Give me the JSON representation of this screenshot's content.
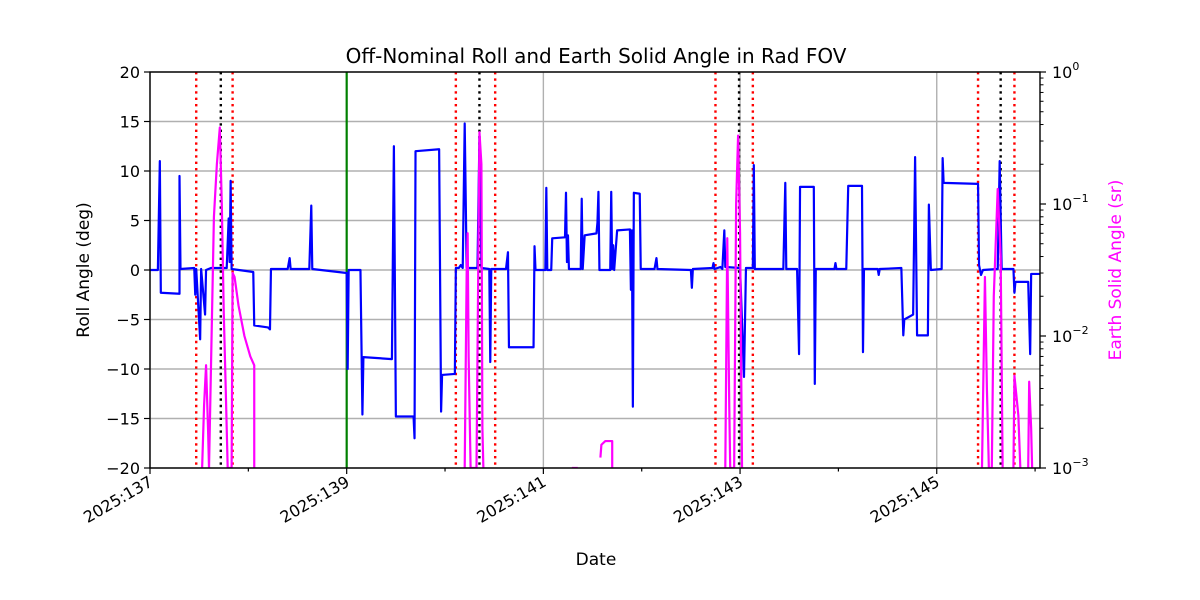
{
  "chart_data": {
    "type": "line",
    "title": "Off-Nominal Roll and Earth Solid Angle in Rad FOV",
    "xlabel": "Date",
    "ylabel": "Roll Angle (deg)",
    "ylabel_right": "Earth Solid Angle (sr)",
    "xlim": [
      137,
      146.05
    ],
    "ylim": [
      -20,
      20
    ],
    "ylim_right": [
      0.001,
      1
    ],
    "y_right_scale": "log",
    "grid": true,
    "x_ticks": [
      {
        "value": 137,
        "label": "2025:137"
      },
      {
        "value": 139,
        "label": "2025:139"
      },
      {
        "value": 141,
        "label": "2025:141"
      },
      {
        "value": 143,
        "label": "2025:143"
      },
      {
        "value": 145,
        "label": "2025:145"
      }
    ],
    "y_ticks": [
      {
        "value": 20,
        "label": "20"
      },
      {
        "value": 15,
        "label": "15"
      },
      {
        "value": 10,
        "label": "10"
      },
      {
        "value": 5,
        "label": "5"
      },
      {
        "value": 0,
        "label": "0"
      },
      {
        "value": -5,
        "label": "−5"
      },
      {
        "value": -10,
        "label": "−10"
      },
      {
        "value": -15,
        "label": "−15"
      },
      {
        "value": -20,
        "label": "−20"
      }
    ],
    "y_right_ticks": [
      {
        "value": 1,
        "base": "10",
        "exp": "0"
      },
      {
        "value": 0.1,
        "base": "10",
        "exp": "−1"
      },
      {
        "value": 0.01,
        "base": "10",
        "exp": "−2"
      },
      {
        "value": 0.001,
        "base": "10",
        "exp": "−3"
      }
    ],
    "colors": {
      "roll": "#0000ff",
      "solid_angle": "#ff00ff",
      "right_axis": "#ff00ff",
      "red_marker": "#ff0000",
      "black_marker": "#000000",
      "green_marker": "#008000",
      "grid": "#b0b0b0"
    },
    "vertical_markers": [
      {
        "x": 137.47,
        "color": "red",
        "style": "dotted"
      },
      {
        "x": 137.72,
        "color": "black",
        "style": "dotted"
      },
      {
        "x": 137.84,
        "color": "red",
        "style": "dotted"
      },
      {
        "x": 139.0,
        "color": "green",
        "style": "solid"
      },
      {
        "x": 140.11,
        "color": "red",
        "style": "dotted"
      },
      {
        "x": 140.35,
        "color": "black",
        "style": "dotted"
      },
      {
        "x": 140.51,
        "color": "red",
        "style": "dotted"
      },
      {
        "x": 142.75,
        "color": "red",
        "style": "dotted"
      },
      {
        "x": 142.99,
        "color": "black",
        "style": "dotted"
      },
      {
        "x": 143.13,
        "color": "red",
        "style": "dotted"
      },
      {
        "x": 145.42,
        "color": "red",
        "style": "dotted"
      },
      {
        "x": 145.65,
        "color": "black",
        "style": "dotted"
      },
      {
        "x": 145.79,
        "color": "red",
        "style": "dotted"
      }
    ],
    "series": [
      {
        "name": "Roll Angle",
        "axis": "left",
        "points": [
          [
            137.0,
            0.0
          ],
          [
            137.08,
            0.0
          ],
          [
            137.1,
            11.0
          ],
          [
            137.11,
            -2.3
          ],
          [
            137.3,
            -2.4
          ],
          [
            137.3,
            9.5
          ],
          [
            137.31,
            0.1
          ],
          [
            137.45,
            0.2
          ],
          [
            137.46,
            -2.5
          ],
          [
            137.47,
            0.1
          ],
          [
            137.51,
            -7.0
          ],
          [
            137.52,
            0.1
          ],
          [
            137.56,
            -4.5
          ],
          [
            137.57,
            0.0
          ],
          [
            137.62,
            0.2
          ],
          [
            137.78,
            0.2
          ],
          [
            137.8,
            5.2
          ],
          [
            137.81,
            0.8
          ],
          [
            137.82,
            9.0
          ],
          [
            137.83,
            0.1
          ],
          [
            138.05,
            -0.2
          ],
          [
            138.06,
            -5.6
          ],
          [
            138.2,
            -5.8
          ],
          [
            138.22,
            -6.0
          ],
          [
            138.23,
            0.1
          ],
          [
            138.4,
            0.1
          ],
          [
            138.42,
            1.2
          ],
          [
            138.43,
            0.1
          ],
          [
            138.62,
            0.1
          ],
          [
            138.64,
            6.5
          ],
          [
            138.65,
            0.1
          ],
          [
            139.0,
            -0.3
          ],
          [
            139.01,
            -10.0
          ],
          [
            139.02,
            0.0
          ],
          [
            139.14,
            0.0
          ],
          [
            139.16,
            -14.6
          ],
          [
            139.17,
            -8.8
          ],
          [
            139.46,
            -9.0
          ],
          [
            139.48,
            12.5
          ],
          [
            139.5,
            -14.8
          ],
          [
            139.68,
            -14.8
          ],
          [
            139.69,
            -17.0
          ],
          [
            139.7,
            12.0
          ],
          [
            139.94,
            12.2
          ],
          [
            139.96,
            -14.3
          ],
          [
            139.97,
            -10.6
          ],
          [
            140.1,
            -10.5
          ],
          [
            140.11,
            0.2
          ],
          [
            140.14,
            0.2
          ],
          [
            140.16,
            0.5
          ],
          [
            140.18,
            0.2
          ],
          [
            140.2,
            14.8
          ],
          [
            140.22,
            0.2
          ],
          [
            140.33,
            0.2
          ],
          [
            140.35,
            13.5
          ],
          [
            140.37,
            0.2
          ],
          [
            140.45,
            0.1
          ],
          [
            140.46,
            -9.3
          ],
          [
            140.47,
            0.1
          ],
          [
            140.62,
            0.1
          ],
          [
            140.64,
            1.8
          ],
          [
            140.65,
            -7.8
          ],
          [
            140.9,
            -7.8
          ],
          [
            140.91,
            2.4
          ],
          [
            140.92,
            0.0
          ],
          [
            141.02,
            0.0
          ],
          [
            141.03,
            8.3
          ],
          [
            141.04,
            0.0
          ],
          [
            141.08,
            0.0
          ],
          [
            141.09,
            3.2
          ],
          [
            141.22,
            3.3
          ],
          [
            141.23,
            7.8
          ],
          [
            141.24,
            0.8
          ],
          [
            141.25,
            3.5
          ],
          [
            141.26,
            0.1
          ],
          [
            141.38,
            0.1
          ],
          [
            141.39,
            7.2
          ],
          [
            141.4,
            0.1
          ],
          [
            141.42,
            3.5
          ],
          [
            141.54,
            3.7
          ],
          [
            141.55,
            4.8
          ],
          [
            141.56,
            7.9
          ],
          [
            141.57,
            0.0
          ],
          [
            141.68,
            0.0
          ],
          [
            141.69,
            7.9
          ],
          [
            141.7,
            0.1
          ],
          [
            141.71,
            2.5
          ],
          [
            141.72,
            0.0
          ],
          [
            141.75,
            4.0
          ],
          [
            141.88,
            4.1
          ],
          [
            141.89,
            -2.0
          ],
          [
            141.9,
            4.0
          ],
          [
            141.91,
            -13.8
          ],
          [
            141.92,
            7.8
          ],
          [
            141.98,
            7.7
          ],
          [
            141.99,
            0.1
          ],
          [
            142.13,
            0.1
          ],
          [
            142.15,
            1.2
          ],
          [
            142.16,
            0.1
          ],
          [
            142.5,
            0.0
          ],
          [
            142.51,
            -1.8
          ],
          [
            142.52,
            0.1
          ],
          [
            142.72,
            0.2
          ],
          [
            142.73,
            0.7
          ],
          [
            142.74,
            0.1
          ],
          [
            142.8,
            0.3
          ],
          [
            142.82,
            0.1
          ],
          [
            142.84,
            4.0
          ],
          [
            142.85,
            0.3
          ],
          [
            143.0,
            0.2
          ],
          [
            143.04,
            -10.8
          ],
          [
            143.06,
            0.2
          ],
          [
            143.13,
            0.2
          ],
          [
            143.14,
            10.6
          ],
          [
            143.15,
            0.1
          ],
          [
            143.44,
            0.1
          ],
          [
            143.46,
            8.8
          ],
          [
            143.47,
            0.1
          ],
          [
            143.58,
            0.1
          ],
          [
            143.6,
            -8.5
          ],
          [
            143.61,
            8.4
          ],
          [
            143.75,
            8.4
          ],
          [
            143.76,
            -11.5
          ],
          [
            143.77,
            0.1
          ],
          [
            143.96,
            0.1
          ],
          [
            143.97,
            0.7
          ],
          [
            143.98,
            0.1
          ],
          [
            144.08,
            0.1
          ],
          [
            144.1,
            8.5
          ],
          [
            144.24,
            8.5
          ],
          [
            144.25,
            -8.3
          ],
          [
            144.26,
            0.1
          ],
          [
            144.4,
            0.1
          ],
          [
            144.41,
            -0.5
          ],
          [
            144.42,
            0.1
          ],
          [
            144.64,
            0.2
          ],
          [
            144.66,
            -6.6
          ],
          [
            144.67,
            -5.0
          ],
          [
            144.76,
            -4.5
          ],
          [
            144.78,
            11.4
          ],
          [
            144.8,
            -6.6
          ],
          [
            144.91,
            -6.6
          ],
          [
            144.92,
            6.6
          ],
          [
            144.94,
            0.0
          ],
          [
            145.05,
            0.1
          ],
          [
            145.06,
            11.3
          ],
          [
            145.07,
            8.8
          ],
          [
            145.42,
            8.7
          ],
          [
            145.43,
            0.5
          ],
          [
            145.45,
            -0.5
          ],
          [
            145.47,
            0.0
          ],
          [
            145.62,
            0.1
          ],
          [
            145.64,
            11.0
          ],
          [
            145.66,
            0.1
          ],
          [
            145.78,
            0.1
          ],
          [
            145.79,
            -2.3
          ],
          [
            145.8,
            -1.2
          ],
          [
            145.93,
            -1.2
          ],
          [
            145.95,
            -8.5
          ],
          [
            145.96,
            -0.4
          ],
          [
            146.05,
            -0.4
          ]
        ]
      },
      {
        "name": "Earth Solid Angle",
        "axis": "right",
        "points": [
          [
            137.53,
            0.001
          ],
          [
            137.55,
            0.003
          ],
          [
            137.57,
            0.006
          ],
          [
            137.59,
            0.002
          ],
          [
            137.6,
            0.001
          ],
          [
            137.65,
            0.08
          ],
          [
            137.68,
            0.2
          ],
          [
            137.71,
            0.38
          ],
          [
            137.73,
            0.1
          ],
          [
            137.75,
            0.015
          ],
          [
            137.77,
            0.004
          ],
          [
            137.79,
            0.001
          ],
          [
            137.83,
            0.001
          ],
          [
            137.84,
            0.03
          ],
          [
            137.86,
            0.028
          ],
          [
            137.9,
            0.017
          ],
          [
            137.96,
            0.01
          ],
          [
            138.02,
            0.007
          ],
          [
            138.06,
            0.006
          ],
          [
            138.06,
            0.001
          ],
          [
            null,
            null
          ],
          [
            140.2,
            0.001
          ],
          [
            140.22,
            0.03
          ],
          [
            140.23,
            0.06
          ],
          [
            140.24,
            0.007
          ],
          [
            140.26,
            0.001
          ],
          [
            140.32,
            0.001
          ],
          [
            140.35,
            0.35
          ],
          [
            140.37,
            0.2
          ],
          [
            140.38,
            0.002
          ],
          [
            140.39,
            0.001
          ],
          [
            null,
            null
          ],
          [
            141.29,
            0.001
          ],
          [
            141.35,
            0.001
          ],
          [
            null,
            null
          ],
          [
            141.58,
            0.0012
          ],
          [
            141.59,
            0.0015
          ],
          [
            141.63,
            0.0016
          ],
          [
            141.7,
            0.0016
          ],
          [
            141.7,
            0.001
          ],
          [
            null,
            null
          ],
          [
            142.85,
            0.001
          ],
          [
            142.87,
            0.055
          ],
          [
            142.89,
            0.003
          ],
          [
            142.9,
            0.001
          ],
          [
            142.94,
            0.001
          ],
          [
            142.96,
            0.1
          ],
          [
            142.98,
            0.33
          ],
          [
            143.0,
            0.06
          ],
          [
            143.02,
            0.001
          ],
          [
            null,
            null
          ],
          [
            145.46,
            0.001
          ],
          [
            145.49,
            0.028
          ],
          [
            145.51,
            0.004
          ],
          [
            145.53,
            0.001
          ],
          [
            145.56,
            0.001
          ],
          [
            145.58,
            0.02
          ],
          [
            145.62,
            0.13
          ],
          [
            145.65,
            0.04
          ],
          [
            145.67,
            0.001
          ],
          [
            null,
            null
          ],
          [
            145.78,
            0.001
          ],
          [
            145.79,
            0.005
          ],
          [
            145.83,
            0.0025
          ],
          [
            145.85,
            0.001
          ],
          [
            null,
            null
          ],
          [
            145.93,
            0.001
          ],
          [
            145.94,
            0.0045
          ],
          [
            145.96,
            0.002
          ],
          [
            145.97,
            0.001
          ]
        ]
      }
    ]
  }
}
